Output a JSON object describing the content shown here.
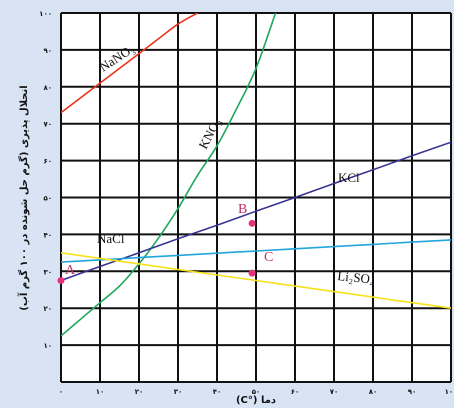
{
  "chart_data": {
    "type": "line",
    "xlabel": "دما (°C)",
    "ylabel": "انحلال پذیری (گرم حل شونده در ۱۰۰ گرم آب)",
    "xlim": [
      0,
      100
    ],
    "ylim": [
      0,
      100
    ],
    "x_ticks": [
      "۰",
      "۱۰",
      "۲۰",
      "۳۰",
      "۴۰",
      "۵۰",
      "۶۰",
      "۷۰",
      "۸۰",
      "۹۰",
      "۱۰۰"
    ],
    "y_ticks": [
      "۰",
      "۱۰",
      "۲۰",
      "۳۰",
      "۴۰",
      "۵۰",
      "۶۰",
      "۷۰",
      "۸۰",
      "۹۰",
      "۱۰۰"
    ],
    "grid": true,
    "series": [
      {
        "name": "NaNO₃",
        "color": "#e8331c",
        "x": [
          0,
          5,
          10,
          15,
          20,
          25,
          30,
          35
        ],
        "y": [
          73,
          77,
          81,
          85,
          89,
          93,
          97,
          100
        ]
      },
      {
        "name": "KNO₃",
        "color": "#1ea75a",
        "x": [
          0,
          5,
          10,
          15,
          20,
          25,
          30,
          35,
          40,
          45,
          50,
          55
        ],
        "y": [
          12.5,
          17,
          21.5,
          26,
          32,
          39,
          47,
          56,
          64,
          74,
          85,
          100
        ]
      },
      {
        "name": "KCl",
        "color": "#3a3493",
        "x": [
          0,
          10,
          20,
          30,
          40,
          50,
          60,
          70,
          80,
          90,
          100
        ],
        "y": [
          27.5,
          31.3,
          35.0,
          38.8,
          42.5,
          46.3,
          50.0,
          53.8,
          57.5,
          61.3,
          65.0
        ]
      },
      {
        "name": "NaCl",
        "color": "#22a5dc",
        "x": [
          0,
          10,
          20,
          30,
          40,
          50,
          60,
          70,
          80,
          90,
          100
        ],
        "y": [
          32.5,
          33.1,
          33.7,
          34.3,
          34.9,
          35.5,
          36.1,
          36.7,
          37.3,
          37.9,
          38.5
        ]
      },
      {
        "name": "Li₂SO₄",
        "color": "#f5e21c",
        "x": [
          0,
          10,
          20,
          30,
          40,
          50,
          60,
          70,
          80,
          90,
          100
        ],
        "y": [
          35,
          33.5,
          32,
          30.5,
          29,
          27.5,
          26,
          24.5,
          23,
          21.5,
          20
        ]
      }
    ],
    "points": [
      {
        "label": "A",
        "x": 0,
        "y": 27.5
      },
      {
        "label": "B",
        "x": 49,
        "y": 43
      },
      {
        "label": "C",
        "x": 49,
        "y": 29.5
      }
    ]
  }
}
